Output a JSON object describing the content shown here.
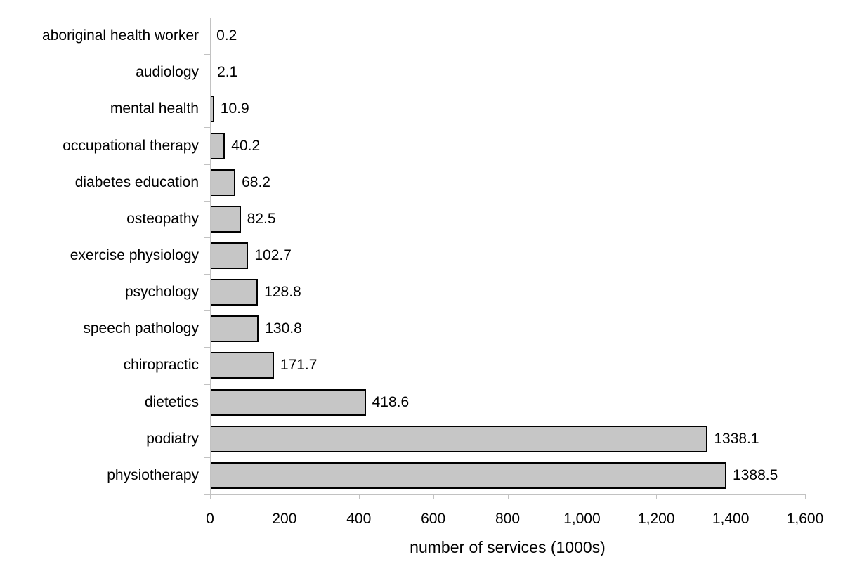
{
  "chart_data": {
    "type": "bar",
    "orientation": "horizontal",
    "title": "",
    "xlabel": "number of services (1000s)",
    "ylabel": "",
    "xlim": [
      0,
      1600
    ],
    "x_tick_step": 200,
    "x_ticks": [
      {
        "value": 0,
        "label": "0"
      },
      {
        "value": 200,
        "label": "200"
      },
      {
        "value": 400,
        "label": "400"
      },
      {
        "value": 600,
        "label": "600"
      },
      {
        "value": 800,
        "label": "800"
      },
      {
        "value": 1000,
        "label": "1,000"
      },
      {
        "value": 1200,
        "label": "1,200"
      },
      {
        "value": 1400,
        "label": "1,400"
      },
      {
        "value": 1600,
        "label": "1,600"
      }
    ],
    "categories": [
      "aboriginal health worker",
      "audiology",
      "mental health",
      "occupational therapy",
      "diabetes education",
      "osteopathy",
      "exercise physiology",
      "psychology",
      "speech pathology",
      "chiropractic",
      "dietetics",
      "podiatry",
      "physiotherapy"
    ],
    "values": [
      0.2,
      2.1,
      10.9,
      40.2,
      68.2,
      82.5,
      102.7,
      128.8,
      130.8,
      171.7,
      418.6,
      1338.1,
      1388.5
    ],
    "value_labels": [
      "0.2",
      "2.1",
      "10.9",
      "40.2",
      "68.2",
      "82.5",
      "102.7",
      "128.8",
      "130.8",
      "171.7",
      "418.6",
      "1338.1",
      "1388.5"
    ],
    "grid": false,
    "legend": false,
    "colors": {
      "bar_fill": "#c6c6c6",
      "bar_border": "#000000",
      "axis": "#c2c2c2",
      "text": "#000000",
      "background": "#ffffff"
    }
  }
}
